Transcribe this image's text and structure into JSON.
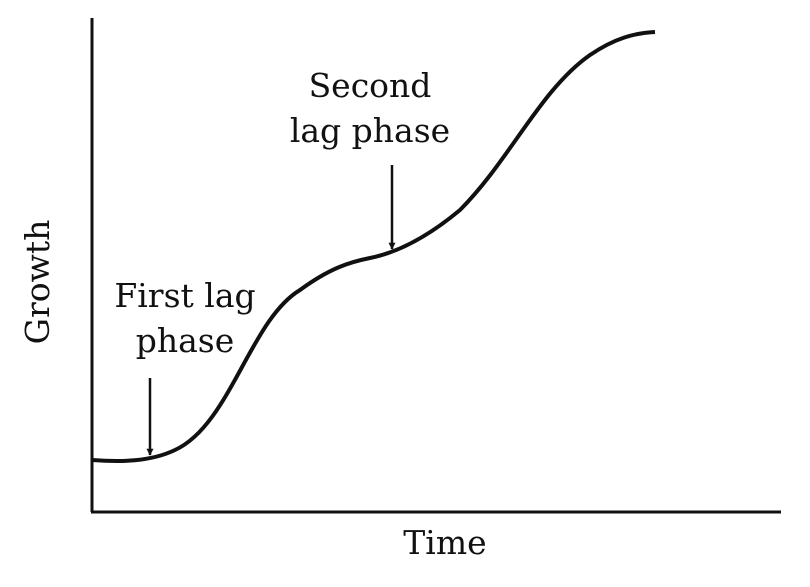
{
  "axes": {
    "x_label": "Time",
    "y_label": "Growth"
  },
  "annotations": [
    {
      "lines": [
        "First lag",
        "phase"
      ]
    },
    {
      "lines": [
        "Second",
        "lag phase"
      ]
    }
  ]
}
